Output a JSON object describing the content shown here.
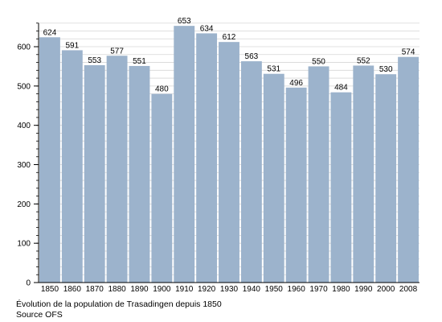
{
  "chart_data": {
    "type": "bar",
    "categories": [
      "1850",
      "1860",
      "1870",
      "1880",
      "1890",
      "1900",
      "1910",
      "1920",
      "1930",
      "1940",
      "1950",
      "1960",
      "1970",
      "1980",
      "1990",
      "2000",
      "2008"
    ],
    "values": [
      624,
      591,
      553,
      577,
      551,
      480,
      653,
      634,
      612,
      563,
      531,
      496,
      550,
      484,
      552,
      530,
      574
    ],
    "ylim": [
      0,
      660
    ],
    "yticks": [
      0,
      100,
      200,
      300,
      400,
      500,
      600
    ],
    "grid": true,
    "legend": "none",
    "bar_color": "#9cb3cc",
    "caption_line1": "Évolution de la population de Trasadingen depuis 1850",
    "caption_line2": "Source OFS"
  }
}
